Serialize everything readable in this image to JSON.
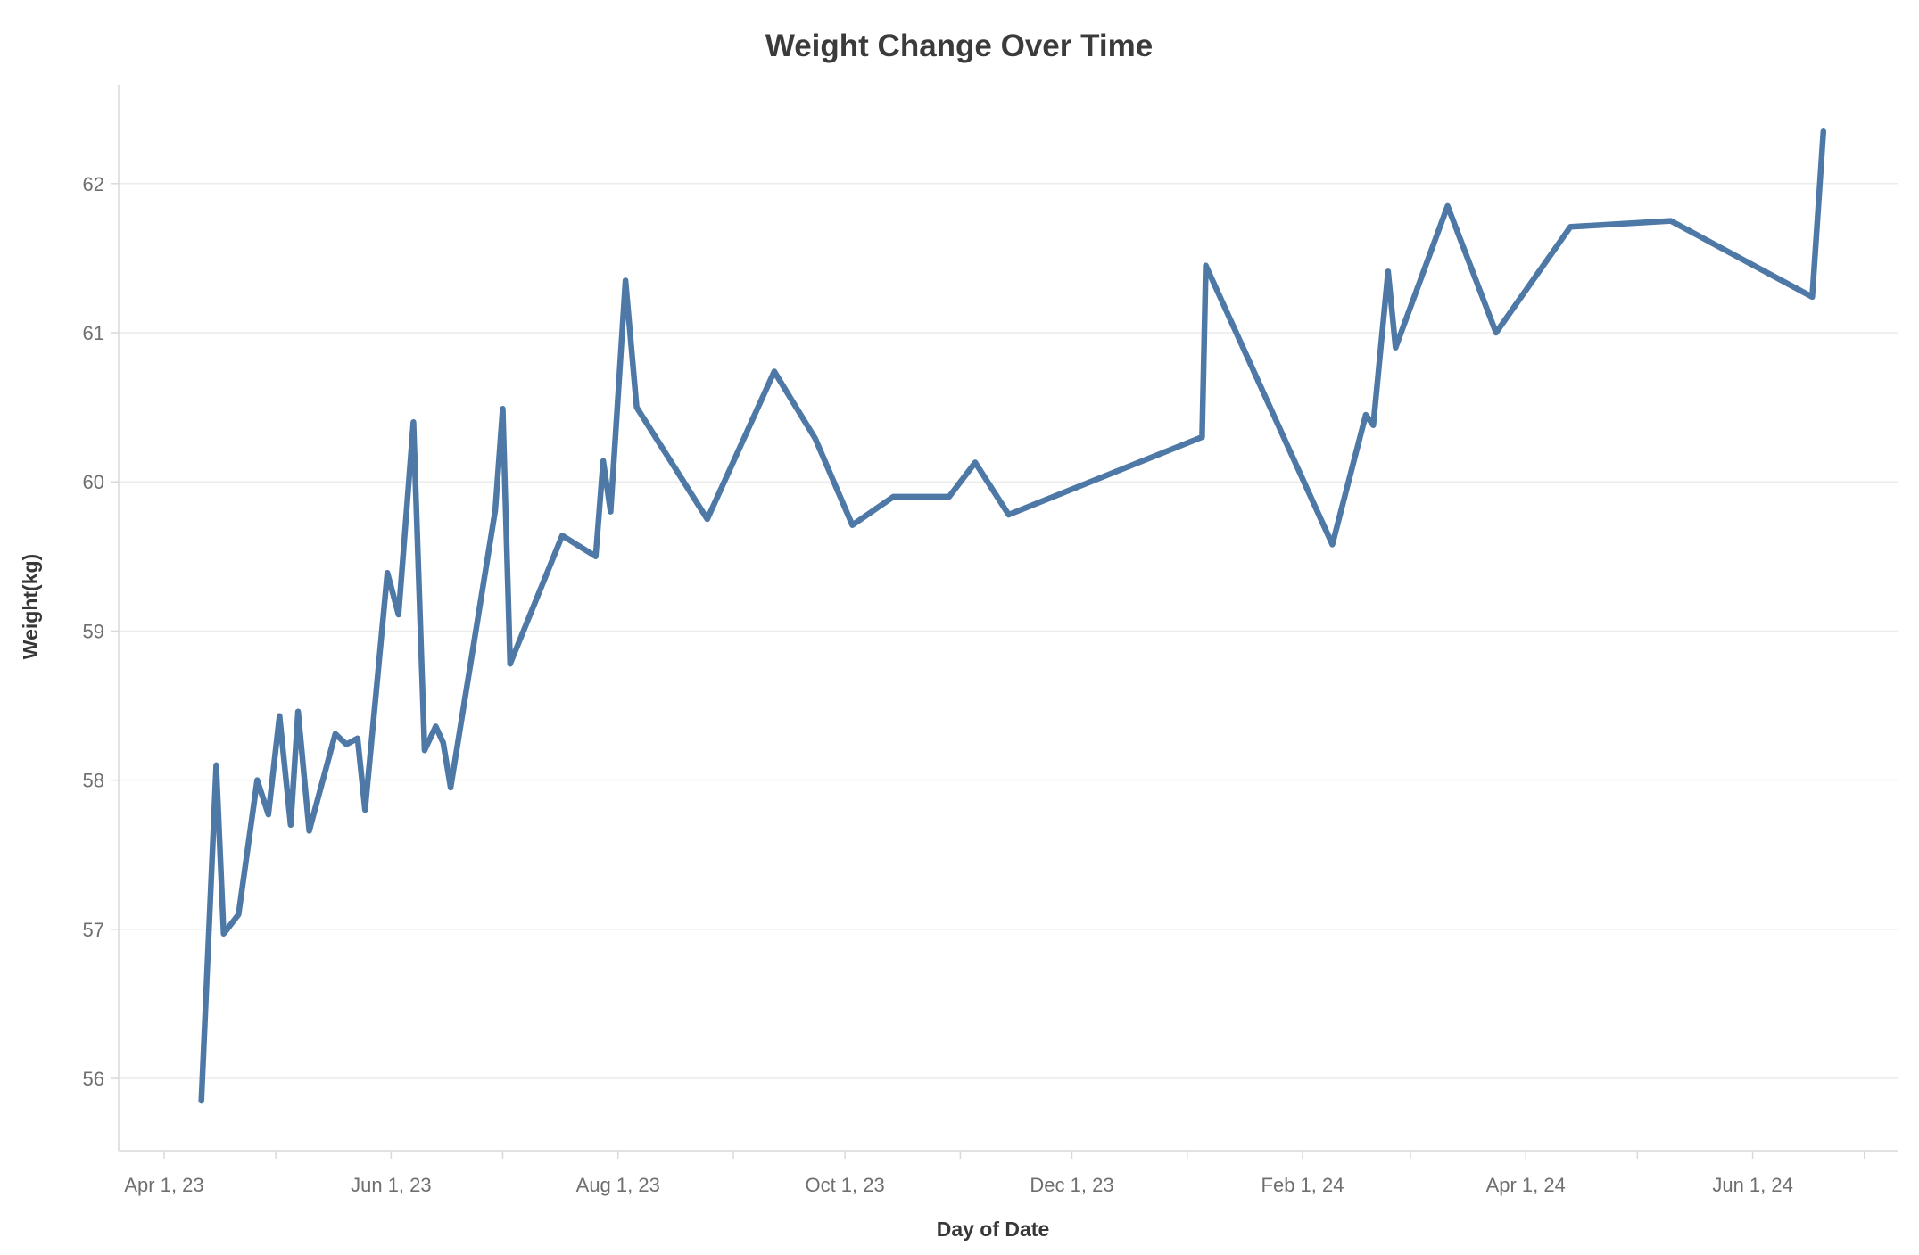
{
  "chart": {
    "title": "Weight Change Over Time",
    "x_axis_title": "Day of Date",
    "y_axis_title": "Weight(kg)"
  },
  "chart_data": {
    "type": "line",
    "title": "Weight Change Over Time",
    "xlabel": "Day of Date",
    "ylabel": "Weight(kg)",
    "grid": "horizontal",
    "legend": "none",
    "series_name": "Weight",
    "series_color": "#4e79a7",
    "background_color": "#ffffff",
    "gridline_color": "#ebebeb",
    "axis_color": "#d9d9d9",
    "tick_label_color": "#6f6f6f",
    "ylim": [
      55.5,
      62.7
    ],
    "xlim": [
      "2023-03-19",
      "2024-07-10"
    ],
    "y_ticks": [
      56,
      57,
      58,
      59,
      60,
      61,
      62
    ],
    "x_tick_labels": [
      {
        "label": "Apr 1, 23",
        "date": "2023-04-01"
      },
      {
        "label": "Jun 1, 23",
        "date": "2023-06-01"
      },
      {
        "label": "Aug 1, 23",
        "date": "2023-08-01"
      },
      {
        "label": "Oct 1, 23",
        "date": "2023-10-01"
      },
      {
        "label": "Dec 1, 23",
        "date": "2023-12-01"
      },
      {
        "label": "Feb 1, 24",
        "date": "2024-02-01"
      },
      {
        "label": "Apr 1, 24",
        "date": "2024-04-01"
      },
      {
        "label": "Jun 1, 24",
        "date": "2024-06-01"
      }
    ],
    "x_minor_ticks": [
      "2023-04-01",
      "2023-05-01",
      "2023-06-01",
      "2023-07-01",
      "2023-08-01",
      "2023-09-01",
      "2023-10-01",
      "2023-11-01",
      "2023-12-01",
      "2024-01-01",
      "2024-02-01",
      "2024-03-01",
      "2024-04-01",
      "2024-05-01",
      "2024-06-01",
      "2024-07-01"
    ],
    "points": [
      {
        "date": "2023-04-11",
        "value": 55.85
      },
      {
        "date": "2023-04-15",
        "value": 58.1
      },
      {
        "date": "2023-04-17",
        "value": 56.97
      },
      {
        "date": "2023-04-21",
        "value": 57.1
      },
      {
        "date": "2023-04-26",
        "value": 58.0
      },
      {
        "date": "2023-04-29",
        "value": 57.77
      },
      {
        "date": "2023-05-02",
        "value": 58.43
      },
      {
        "date": "2023-05-05",
        "value": 57.7
      },
      {
        "date": "2023-05-07",
        "value": 58.46
      },
      {
        "date": "2023-05-10",
        "value": 57.66
      },
      {
        "date": "2023-05-17",
        "value": 58.31
      },
      {
        "date": "2023-05-20",
        "value": 58.24
      },
      {
        "date": "2023-05-23",
        "value": 58.28
      },
      {
        "date": "2023-05-25",
        "value": 57.8
      },
      {
        "date": "2023-05-31",
        "value": 59.39
      },
      {
        "date": "2023-06-03",
        "value": 59.11
      },
      {
        "date": "2023-06-07",
        "value": 60.4
      },
      {
        "date": "2023-06-10",
        "value": 58.2
      },
      {
        "date": "2023-06-13",
        "value": 58.36
      },
      {
        "date": "2023-06-15",
        "value": 58.25
      },
      {
        "date": "2023-06-17",
        "value": 57.95
      },
      {
        "date": "2023-06-29",
        "value": 59.81
      },
      {
        "date": "2023-07-01",
        "value": 60.49
      },
      {
        "date": "2023-07-03",
        "value": 58.78
      },
      {
        "date": "2023-07-17",
        "value": 59.64
      },
      {
        "date": "2023-07-26",
        "value": 59.5
      },
      {
        "date": "2023-07-28",
        "value": 60.14
      },
      {
        "date": "2023-07-30",
        "value": 59.8
      },
      {
        "date": "2023-08-03",
        "value": 61.35
      },
      {
        "date": "2023-08-06",
        "value": 60.5
      },
      {
        "date": "2023-08-25",
        "value": 59.75
      },
      {
        "date": "2023-09-12",
        "value": 60.74
      },
      {
        "date": "2023-09-23",
        "value": 60.29
      },
      {
        "date": "2023-10-03",
        "value": 59.71
      },
      {
        "date": "2023-10-14",
        "value": 59.9
      },
      {
        "date": "2023-10-29",
        "value": 59.9
      },
      {
        "date": "2023-11-05",
        "value": 60.13
      },
      {
        "date": "2023-11-14",
        "value": 59.78
      },
      {
        "date": "2024-01-05",
        "value": 60.3
      },
      {
        "date": "2024-01-06",
        "value": 61.45
      },
      {
        "date": "2024-02-09",
        "value": 59.58
      },
      {
        "date": "2024-02-18",
        "value": 60.45
      },
      {
        "date": "2024-02-20",
        "value": 60.38
      },
      {
        "date": "2024-02-24",
        "value": 61.41
      },
      {
        "date": "2024-02-26",
        "value": 60.9
      },
      {
        "date": "2024-03-11",
        "value": 61.85
      },
      {
        "date": "2024-03-24",
        "value": 61.0
      },
      {
        "date": "2024-04-13",
        "value": 61.71
      },
      {
        "date": "2024-05-10",
        "value": 61.75
      },
      {
        "date": "2024-06-17",
        "value": 61.24
      },
      {
        "date": "2024-06-20",
        "value": 62.35
      }
    ]
  }
}
